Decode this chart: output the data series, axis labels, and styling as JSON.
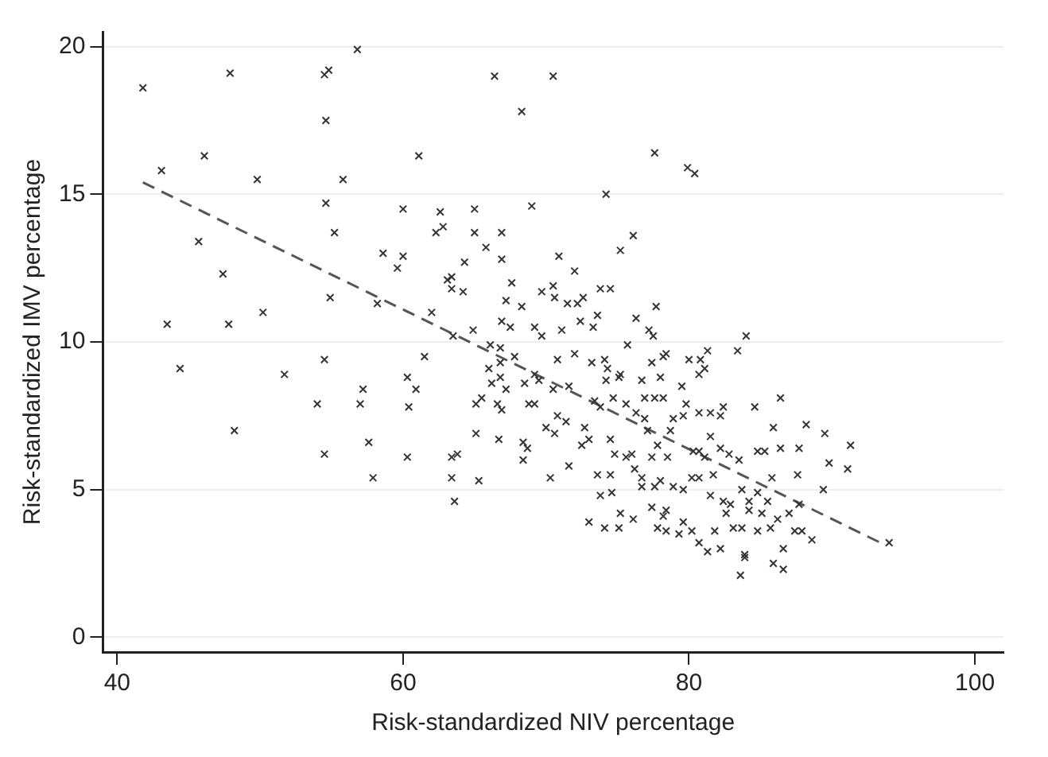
{
  "chart_data": {
    "type": "scatter",
    "xlabel": "Risk-standardized NIV percentage",
    "ylabel": "Risk-standardized IMV percentage",
    "xlim": [
      39,
      102
    ],
    "ylim": [
      -0.5,
      20.5
    ],
    "xticks": [
      40,
      60,
      80,
      100
    ],
    "yticks": [
      0,
      5,
      10,
      15,
      20
    ],
    "grid": "y",
    "legend": false,
    "marker": "cross",
    "series": [
      {
        "color": "#333333",
        "x": [
          41.8,
          47.9,
          54.5,
          54.8,
          56.8,
          66.4,
          68.3,
          54.6,
          43.1,
          46.1,
          49.8,
          55.8,
          61.1,
          54.6,
          60.0,
          62.6,
          65.0,
          62.3,
          62.8,
          65.0,
          66.9,
          65.8,
          45.7,
          55.2,
          58.6,
          60.0,
          59.6,
          66.9,
          64.3,
          47.4,
          63.1,
          63.4,
          63.4,
          64.2,
          67.6,
          67.2,
          68.3,
          54.9,
          58.2,
          62.0,
          43.5,
          47.8,
          50.2,
          64.9,
          66.9,
          67.5,
          63.5,
          66.1,
          66.8,
          66.0,
          66.8,
          67.8,
          44.4,
          51.7,
          54.5,
          61.5,
          70.5,
          77.6,
          79.9,
          80.4,
          74.2,
          69.0,
          76.1,
          75.2,
          70.9,
          72.0,
          69.7,
          70.5,
          70.6,
          71.5,
          72.2,
          72.6,
          73.8,
          74.5,
          73.6,
          77.7,
          69.2,
          69.7,
          71.1,
          72.4,
          73.3,
          76.3,
          77.2,
          77.5,
          75.7,
          83.4,
          84.0,
          70.8,
          72.0,
          73.2,
          74.1,
          74.3,
          75.2,
          77.4,
          78.2,
          78.4,
          78.0,
          80.0,
          80.8,
          81.1,
          81.3,
          80.7,
          69.2,
          48.2,
          54.0,
          54.5,
          57.2,
          57.0,
          57.6,
          57.9,
          60.3,
          60.4,
          60.9,
          60.3,
          63.4,
          63.8,
          63.4,
          63.6,
          65.1,
          65.3,
          65.5,
          65.1,
          66.2,
          66.8,
          67.2,
          66.6,
          66.9,
          66.7,
          68.5,
          68.4,
          68.7,
          68.4,
          68.8,
          69.5,
          71.6,
          70.5,
          69.2,
          70.8,
          71.4,
          70.0,
          70.6,
          72.7,
          72.5,
          73.0,
          71.6,
          70.3,
          74.2,
          75.1,
          73.4,
          74.7,
          73.8,
          75.6,
          76.7,
          76.9,
          77.6,
          78.2,
          76.3,
          76.9,
          77.1,
          74.5,
          74.8,
          75.6,
          76.2,
          76.0,
          73.6,
          74.5,
          76.7,
          76.7,
          73.8,
          74.6,
          75.2,
          76.1,
          73.0,
          74.1,
          75.1,
          77.4,
          77.8,
          78.5,
          78.7,
          78.9,
          79.6,
          79.8,
          79.5,
          78.0,
          77.6,
          78.4,
          78.2,
          77.4,
          78.9,
          79.6,
          77.8,
          78.4,
          79.3,
          79.6,
          80.2,
          80.7,
          80.3,
          80.7,
          81.1,
          80.2,
          80.7,
          81.7,
          80.7,
          81.5,
          82.4,
          82.2,
          81.5,
          82.2,
          82.8,
          83.5,
          81.5,
          82.4,
          82.9,
          82.6,
          81.8,
          81.3,
          82.2,
          83.1,
          83.7,
          83.9,
          83.9,
          83.6,
          83.7,
          84.2,
          84.8,
          85.5,
          84.6,
          85.9,
          86.4,
          88.2,
          89.5,
          84.8,
          85.3,
          86.4,
          87.7,
          91.3,
          85.8,
          87.6,
          89.8,
          91.1,
          87.7,
          89.4,
          84.8,
          85.7,
          87.4,
          87.9,
          88.6,
          86.2,
          87.0,
          85.9,
          86.6,
          86.6,
          94.0,
          84.2,
          85.1
        ],
        "values": [
          18.6,
          19.1,
          19.05,
          19.2,
          19.9,
          19.0,
          17.8,
          17.5,
          15.8,
          16.3,
          15.5,
          15.5,
          16.3,
          14.7,
          14.5,
          14.4,
          14.5,
          13.7,
          13.9,
          13.7,
          13.7,
          13.2,
          13.4,
          13.7,
          13.0,
          12.9,
          12.5,
          12.8,
          12.7,
          12.3,
          12.1,
          12.2,
          11.8,
          11.7,
          12.0,
          11.4,
          11.2,
          11.5,
          11.3,
          11.0,
          10.6,
          10.6,
          11.0,
          10.4,
          10.7,
          10.5,
          10.2,
          9.9,
          9.8,
          9.1,
          9.3,
          9.5,
          9.1,
          8.9,
          9.4,
          9.5,
          19.0,
          16.4,
          15.9,
          15.7,
          15.0,
          14.6,
          13.6,
          13.1,
          12.9,
          12.4,
          11.7,
          11.9,
          11.5,
          11.3,
          11.3,
          11.5,
          11.8,
          11.8,
          10.9,
          11.2,
          10.5,
          10.2,
          10.4,
          10.7,
          10.5,
          10.8,
          10.4,
          10.2,
          9.9,
          9.7,
          10.2,
          9.4,
          9.6,
          9.3,
          9.4,
          9.1,
          8.9,
          9.3,
          9.5,
          9.6,
          8.8,
          9.4,
          9.4,
          9.1,
          9.7,
          8.9,
          8.9,
          7.0,
          7.9,
          6.2,
          8.4,
          7.9,
          6.6,
          5.4,
          8.8,
          7.8,
          8.4,
          6.1,
          6.1,
          6.2,
          5.4,
          4.6,
          6.9,
          5.3,
          8.1,
          7.9,
          8.6,
          8.8,
          8.4,
          7.9,
          7.7,
          6.7,
          8.6,
          6.6,
          6.4,
          6.0,
          7.9,
          8.7,
          8.5,
          8.4,
          7.9,
          7.5,
          7.3,
          7.1,
          6.9,
          7.1,
          6.5,
          6.7,
          5.8,
          5.4,
          8.7,
          8.8,
          8.0,
          8.1,
          7.8,
          7.9,
          8.7,
          8.1,
          8.1,
          8.1,
          7.6,
          7.4,
          7.0,
          6.7,
          6.2,
          6.1,
          5.7,
          6.2,
          5.5,
          5.5,
          5.4,
          5.1,
          4.8,
          4.9,
          4.2,
          4.0,
          3.9,
          3.7,
          3.7,
          6.1,
          6.5,
          6.1,
          7.0,
          7.4,
          7.5,
          7.9,
          8.5,
          5.3,
          5.1,
          4.3,
          4.1,
          4.4,
          5.1,
          5.0,
          3.7,
          3.6,
          3.5,
          3.9,
          3.6,
          3.2,
          6.3,
          6.3,
          6.1,
          5.4,
          5.4,
          5.5,
          7.6,
          7.6,
          7.8,
          7.5,
          6.8,
          6.4,
          6.2,
          6.0,
          4.8,
          4.6,
          4.5,
          4.2,
          3.6,
          2.9,
          3.0,
          3.7,
          3.7,
          2.8,
          2.7,
          2.1,
          5.0,
          4.6,
          4.9,
          4.6,
          7.8,
          7.1,
          8.1,
          7.2,
          6.9,
          6.3,
          6.3,
          6.4,
          6.4,
          6.5,
          5.4,
          5.5,
          5.9,
          5.7,
          4.5,
          5.0,
          3.6,
          3.7,
          3.6,
          3.6,
          3.3,
          4.0,
          4.2,
          2.5,
          3.0,
          2.3,
          3.2,
          4.3,
          4.2
        ]
      },
      {
        "type": "line",
        "color": "#555555",
        "line_style": "dashed",
        "marker": "none",
        "x": [
          41.8,
          93.4
        ],
        "values": [
          15.4,
          3.2
        ]
      }
    ]
  }
}
